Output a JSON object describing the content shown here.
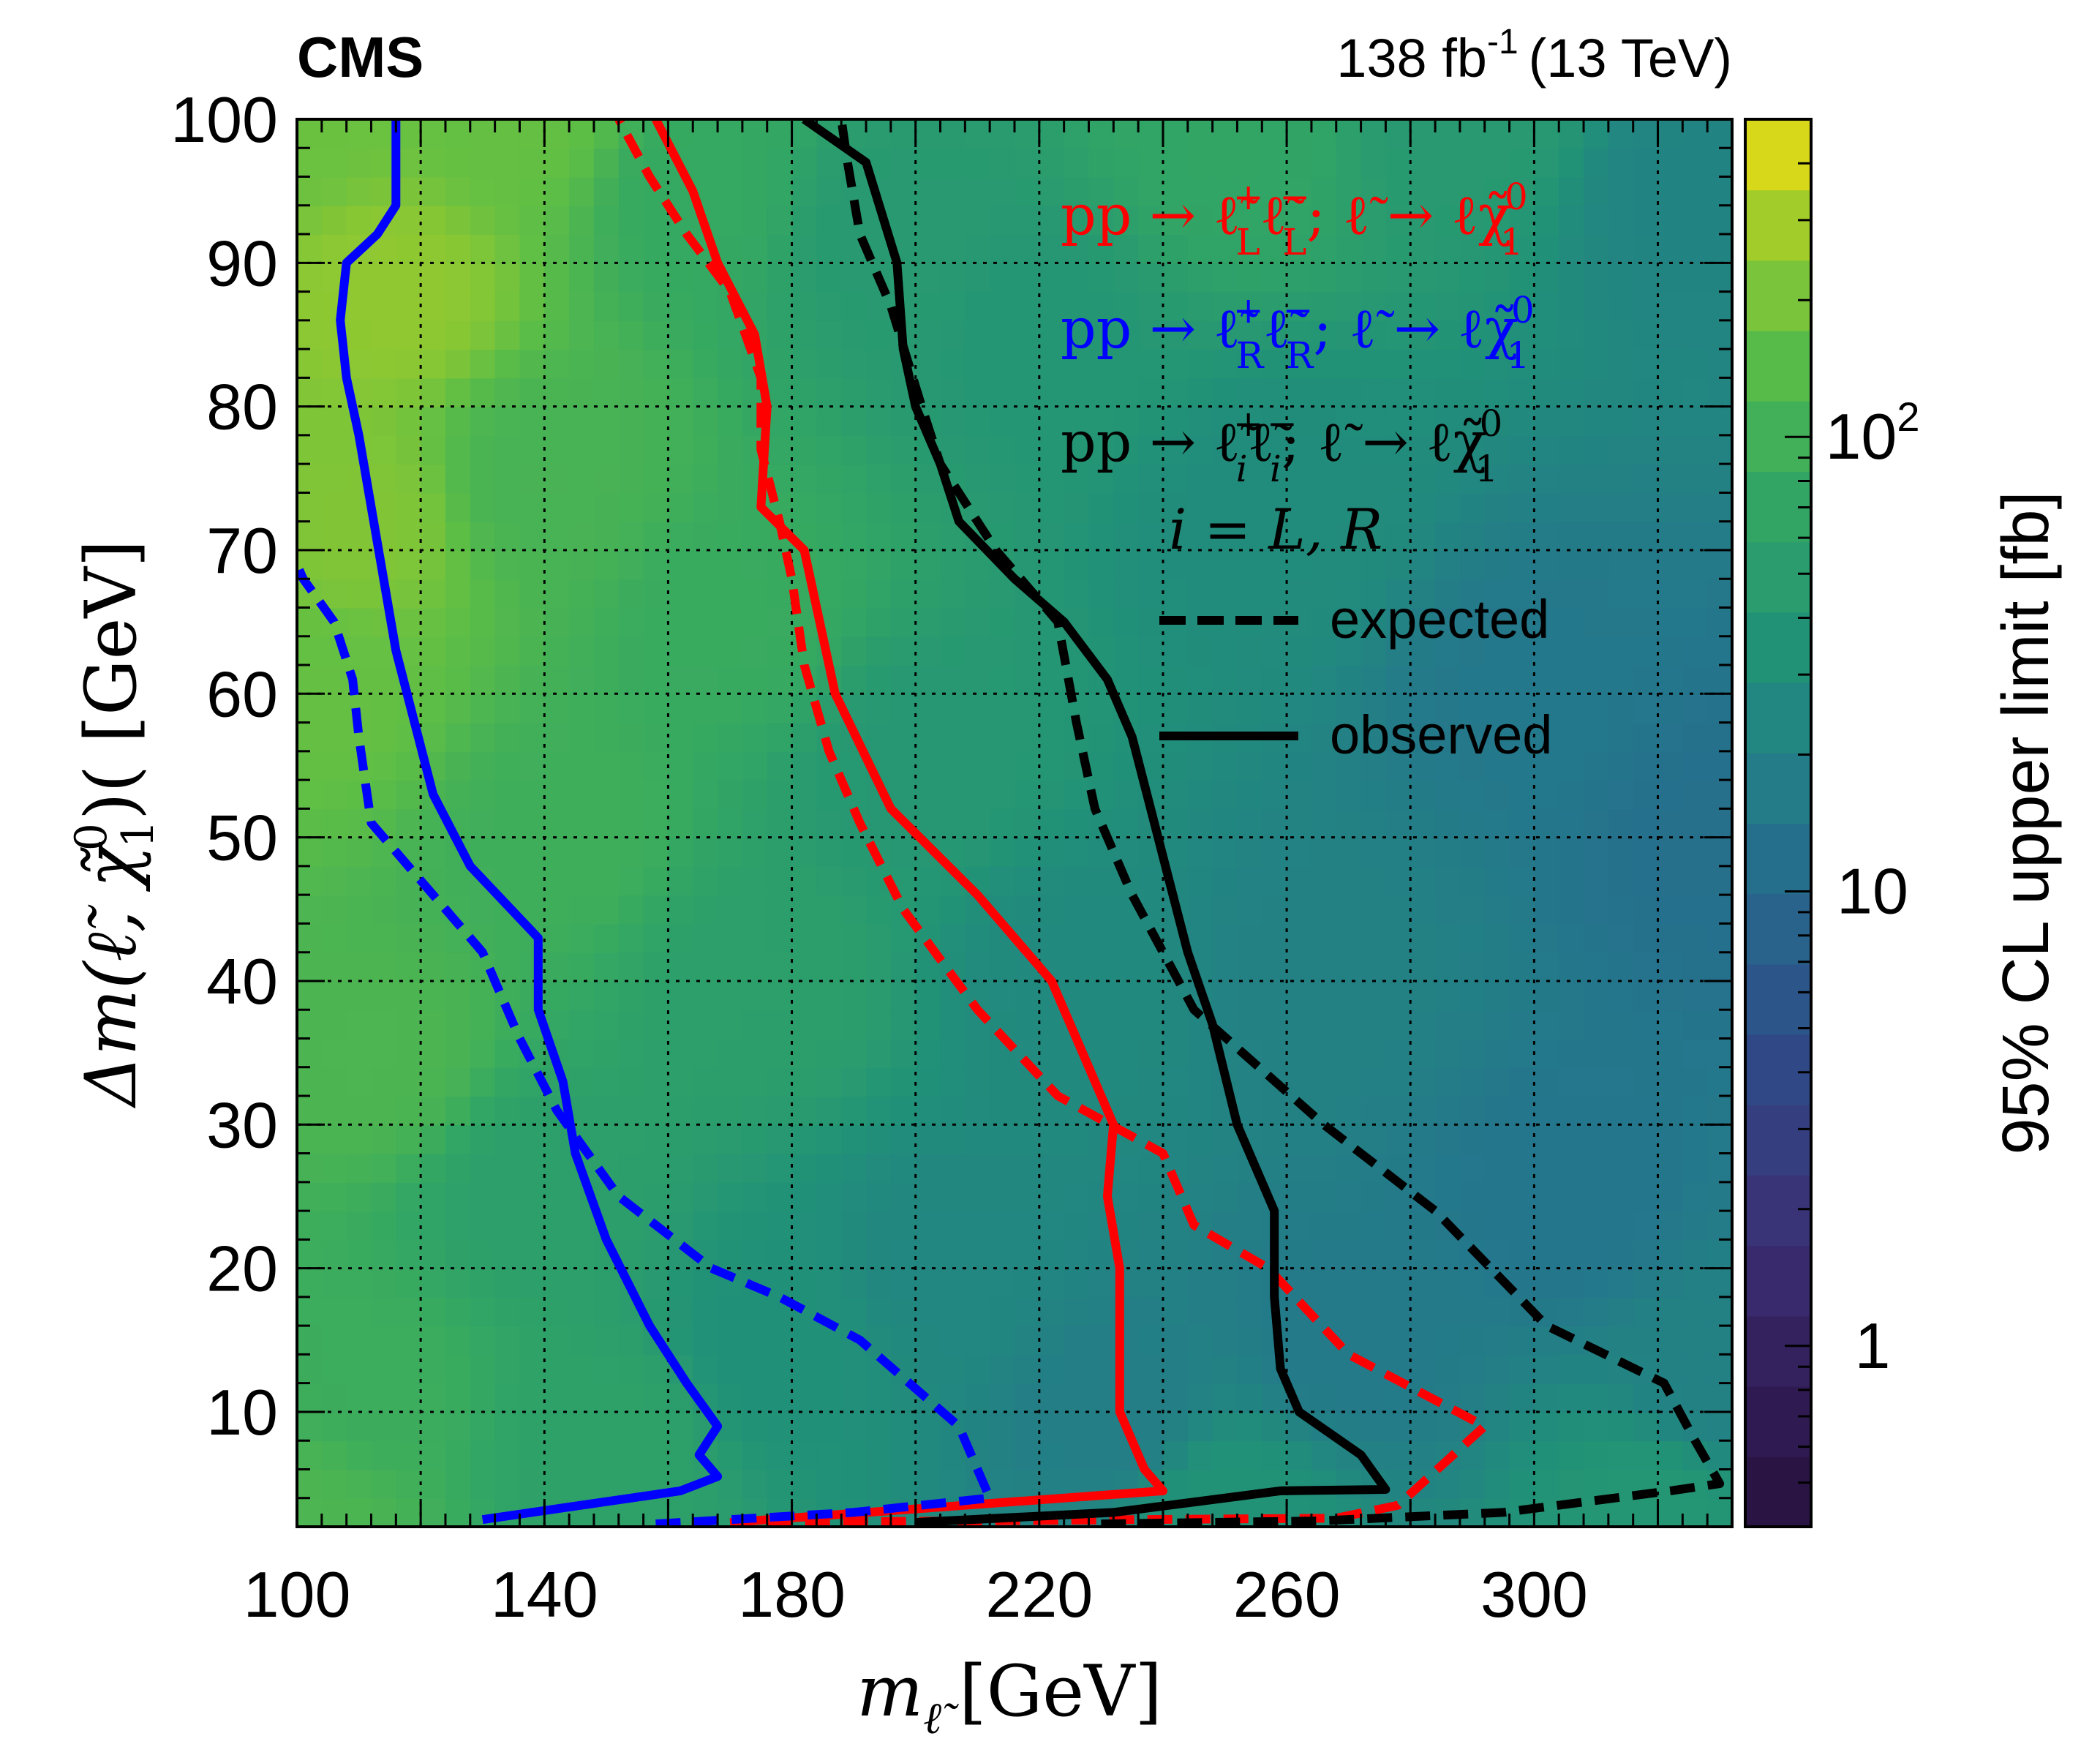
{
  "chart_data": {
    "type": "heatmap",
    "experiment_label": "CMS",
    "lumi_label": "138 fb",
    "lumi_exponent": "-1",
    "energy_label": "(13 TeV)",
    "xlabel": "m",
    "xlabel_sub": "ℓ̃",
    "xlabel_unit": "[GeV]",
    "ylabel": "Δm(ℓ̃, χ̃",
    "ylabel_sub": "1",
    "ylabel_sup": "0",
    "ylabel_tail": ")( [GeV]",
    "zlabel": "95% CL upper limit [fb]",
    "xlim": [
      100,
      332
    ],
    "ylim": [
      2,
      100
    ],
    "zlim": [
      0.4,
      500
    ],
    "zscale": "log",
    "x_ticks": [
      100,
      140,
      180,
      220,
      260,
      300
    ],
    "y_ticks": [
      10,
      20,
      30,
      40,
      50,
      60,
      70,
      80,
      90,
      100
    ],
    "z_ticks": [
      {
        "value": 1,
        "base": "1",
        "exp": ""
      },
      {
        "value": 10,
        "base": "10",
        "exp": ""
      },
      {
        "value": 100,
        "base": "10",
        "exp": "2"
      }
    ],
    "grid": true,
    "colors": {
      "red": "#ff0000",
      "blue": "#0000ff",
      "black": "#000000"
    },
    "legend": {
      "placement": "top-right",
      "entries": [
        {
          "pre": "pp → ℓ̃",
          "sup1": "+",
          "sub1": "L",
          "mid": "ℓ̃",
          "sup2": "−",
          "sub2": "L",
          "post": "; ℓ̃ → ℓχ̃",
          "sup3": "0",
          "sub3": "1",
          "color": "#ff0000"
        },
        {
          "pre": "pp → ℓ̃",
          "sup1": "+",
          "sub1": "R",
          "mid": "ℓ̃",
          "sup2": "−",
          "sub2": "R",
          "post": "; ℓ̃ → ℓχ̃",
          "sup3": "0",
          "sub3": "1",
          "color": "#0000ff"
        },
        {
          "pre": "pp → ℓ̃",
          "sup1": "+",
          "sub1": "i",
          "mid": "ℓ̃",
          "sup2": "−",
          "sub2": "i",
          "post": "; ℓ̃ → ℓχ̃",
          "sup3": "0",
          "sub3": "1",
          "color": "#000000"
        }
      ],
      "subtitle": "i = L, R",
      "expected_label": "expected",
      "observed_label": "observed"
    },
    "series": [
      {
        "color": "#ff0000",
        "style": "solid",
        "points": [
          [
            170,
            2.3
          ],
          [
            240,
            4.5
          ],
          [
            237,
            6
          ],
          [
            233,
            10
          ],
          [
            233,
            20
          ],
          [
            231,
            25
          ],
          [
            232,
            30
          ],
          [
            226,
            36
          ],
          [
            222,
            40
          ],
          [
            210,
            46
          ],
          [
            196,
            52
          ],
          [
            187,
            60
          ],
          [
            182,
            70
          ],
          [
            175,
            73
          ],
          [
            176,
            80
          ],
          [
            174,
            85
          ],
          [
            168,
            90
          ],
          [
            164,
            95
          ],
          [
            158,
            100
          ]
        ]
      },
      {
        "color": "#ff0000",
        "style": "dashed",
        "points": [
          [
            176,
            2.3
          ],
          [
            268,
            2.6
          ],
          [
            278,
            3.5
          ],
          [
            292,
            9
          ],
          [
            270,
            14
          ],
          [
            257,
            20
          ],
          [
            245,
            23
          ],
          [
            240,
            28
          ],
          [
            223,
            32
          ],
          [
            210,
            38
          ],
          [
            198,
            45
          ],
          [
            191,
            51
          ],
          [
            186,
            56
          ],
          [
            182,
            62
          ],
          [
            180,
            68
          ],
          [
            178,
            72
          ],
          [
            175,
            77
          ],
          [
            175,
            82
          ],
          [
            170,
            88
          ],
          [
            163,
            92
          ],
          [
            157,
            96
          ],
          [
            152,
            100
          ]
        ]
      },
      {
        "color": "#0000ff",
        "style": "solid",
        "points": [
          [
            130,
            2.5
          ],
          [
            162,
            4.5
          ],
          [
            168,
            5.5
          ],
          [
            165,
            7
          ],
          [
            168,
            9
          ],
          [
            163,
            12
          ],
          [
            157,
            16
          ],
          [
            150,
            22
          ],
          [
            145,
            28
          ],
          [
            143,
            33
          ],
          [
            139,
            38
          ],
          [
            139,
            43
          ],
          [
            128,
            48
          ],
          [
            122,
            53
          ],
          [
            119,
            58
          ],
          [
            116,
            63
          ],
          [
            114,
            68
          ],
          [
            112,
            73
          ],
          [
            110,
            78
          ],
          [
            108,
            82
          ],
          [
            107,
            86
          ],
          [
            108,
            90
          ],
          [
            113,
            92
          ],
          [
            116,
            94
          ],
          [
            116,
            100
          ]
        ]
      },
      {
        "color": "#0000ff",
        "style": "dashed",
        "points": [
          [
            158,
            2.2
          ],
          [
            190,
            3
          ],
          [
            212,
            4
          ],
          [
            207,
            9
          ],
          [
            191,
            15
          ],
          [
            178,
            18
          ],
          [
            167,
            20
          ],
          [
            161,
            22
          ],
          [
            152,
            25
          ],
          [
            142,
            31
          ],
          [
            136,
            36
          ],
          [
            130,
            42
          ],
          [
            120,
            47
          ],
          [
            112,
            51
          ],
          [
            110,
            57
          ],
          [
            109,
            61
          ],
          [
            106,
            65
          ],
          [
            101,
            68
          ],
          [
            100,
            69
          ]
        ]
      },
      {
        "color": "#000000",
        "style": "solid",
        "points": [
          [
            200,
            2.3
          ],
          [
            232,
            3
          ],
          [
            259,
            4.5
          ],
          [
            276,
            4.6
          ],
          [
            272,
            7
          ],
          [
            262,
            10
          ],
          [
            259,
            13
          ],
          [
            258,
            18
          ],
          [
            258,
            24
          ],
          [
            252,
            30
          ],
          [
            248,
            37
          ],
          [
            244,
            42
          ],
          [
            241,
            47
          ],
          [
            238,
            52
          ],
          [
            235,
            57
          ],
          [
            231,
            61
          ],
          [
            224,
            65
          ],
          [
            216,
            68
          ],
          [
            207,
            72
          ],
          [
            204,
            76
          ],
          [
            200,
            80
          ],
          [
            198,
            84
          ],
          [
            197,
            90
          ],
          [
            192,
            97
          ],
          [
            182,
            100
          ]
        ]
      },
      {
        "color": "#000000",
        "style": "dashed",
        "points": [
          [
            230,
            2.2
          ],
          [
            265,
            2.4
          ],
          [
            295,
            3
          ],
          [
            322,
            4.5
          ],
          [
            330,
            5
          ],
          [
            326,
            8
          ],
          [
            321,
            12
          ],
          [
            302,
            16
          ],
          [
            284,
            24
          ],
          [
            266,
            30
          ],
          [
            245,
            38
          ],
          [
            235,
            46
          ],
          [
            229,
            52
          ],
          [
            226,
            58
          ],
          [
            223,
            65
          ],
          [
            213,
            70
          ],
          [
            204,
            76
          ],
          [
            201,
            80
          ],
          [
            196,
            87
          ],
          [
            191,
            92
          ],
          [
            189,
            97
          ],
          [
            188,
            100
          ]
        ]
      }
    ],
    "heatmap_features": [
      {
        "x": 100,
        "y": 100,
        "v": 180
      },
      {
        "x": 115,
        "y": 88,
        "v": 250
      },
      {
        "x": 110,
        "y": 72,
        "v": 220
      },
      {
        "x": 104,
        "y": 60,
        "v": 170
      },
      {
        "x": 112,
        "y": 35,
        "v": 120
      },
      {
        "x": 112,
        "y": 12,
        "v": 90
      },
      {
        "x": 100,
        "y": 2,
        "v": 120
      },
      {
        "x": 135,
        "y": 100,
        "v": 170
      },
      {
        "x": 140,
        "y": 75,
        "v": 110
      },
      {
        "x": 142,
        "y": 50,
        "v": 95
      },
      {
        "x": 140,
        "y": 25,
        "v": 55
      },
      {
        "x": 150,
        "y": 8,
        "v": 60
      },
      {
        "x": 165,
        "y": 95,
        "v": 80
      },
      {
        "x": 170,
        "y": 65,
        "v": 85
      },
      {
        "x": 175,
        "y": 40,
        "v": 55
      },
      {
        "x": 178,
        "y": 15,
        "v": 32
      },
      {
        "x": 195,
        "y": 92,
        "v": 45
      },
      {
        "x": 200,
        "y": 55,
        "v": 42
      },
      {
        "x": 205,
        "y": 20,
        "v": 24
      },
      {
        "x": 220,
        "y": 85,
        "v": 40
      },
      {
        "x": 225,
        "y": 40,
        "v": 26
      },
      {
        "x": 232,
        "y": 10,
        "v": 18
      },
      {
        "x": 250,
        "y": 98,
        "v": 70
      },
      {
        "x": 258,
        "y": 72,
        "v": 28
      },
      {
        "x": 265,
        "y": 40,
        "v": 20
      },
      {
        "x": 270,
        "y": 15,
        "v": 16
      },
      {
        "x": 290,
        "y": 100,
        "v": 45
      },
      {
        "x": 300,
        "y": 60,
        "v": 15
      },
      {
        "x": 305,
        "y": 25,
        "v": 14
      },
      {
        "x": 325,
        "y": 95,
        "v": 22
      },
      {
        "x": 330,
        "y": 50,
        "v": 12
      },
      {
        "x": 330,
        "y": 12,
        "v": 20
      },
      {
        "x": 250,
        "y": 3,
        "v": 35
      },
      {
        "x": 320,
        "y": 3,
        "v": 40
      }
    ]
  }
}
